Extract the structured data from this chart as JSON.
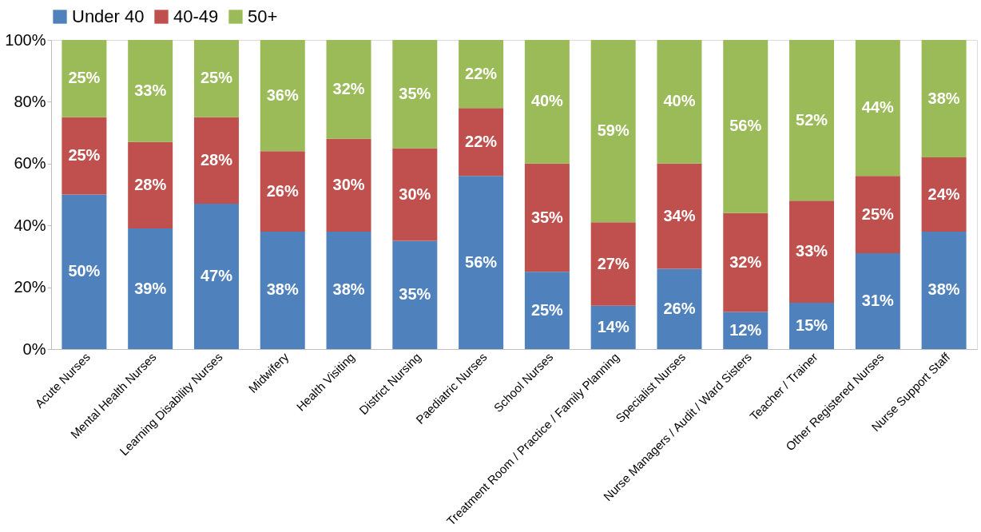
{
  "chart_data": {
    "type": "bar",
    "stacked": true,
    "legend": "top",
    "grid": false,
    "categories": [
      "Acute Nurses",
      "Mental Health Nurses",
      "Learning Disability Nurses",
      "Midwifery",
      "Health Visiting",
      "District Nursing",
      "Paediatric Nurses",
      "School Nurses",
      "Treatment Room / Practice / Family Planning",
      "Specialist Nurses",
      "Nurse Managers / Audit / Ward Sisters",
      "Teacher / Trainer",
      "Other Registered Nurses",
      "Nurse Support Staff"
    ],
    "ylim": [
      0,
      100
    ],
    "yticks": [
      {
        "value": 0,
        "label": "0%"
      },
      {
        "value": 20,
        "label": "20%"
      },
      {
        "value": 40,
        "label": "40%"
      },
      {
        "value": 60,
        "label": "60%"
      },
      {
        "value": 80,
        "label": "80%"
      },
      {
        "value": 100,
        "label": "100%"
      }
    ],
    "series": [
      {
        "name": "Under 40",
        "color": "#4f81bd",
        "values": [
          50,
          39,
          47,
          38,
          38,
          35,
          56,
          25,
          14,
          26,
          12,
          15,
          31,
          38
        ],
        "value_labels": [
          "50%",
          "39%",
          "47%",
          "38%",
          "38%",
          "35%",
          "56%",
          "25%",
          "14%",
          "26%",
          "12%",
          "15%",
          "31%",
          "38%"
        ]
      },
      {
        "name": "40-49",
        "color": "#c0504d",
        "values": [
          25,
          28,
          28,
          26,
          30,
          30,
          22,
          35,
          27,
          34,
          32,
          33,
          25,
          24
        ],
        "value_labels": [
          "25%",
          "28%",
          "28%",
          "26%",
          "30%",
          "30%",
          "22%",
          "35%",
          "27%",
          "34%",
          "32%",
          "33%",
          "25%",
          "24%"
        ]
      },
      {
        "name": "50+",
        "color": "#9bbb59",
        "values": [
          25,
          33,
          25,
          36,
          32,
          35,
          22,
          40,
          59,
          40,
          56,
          52,
          44,
          38
        ],
        "value_labels": [
          "25%",
          "33%",
          "25%",
          "36%",
          "32%",
          "35%",
          "22%",
          "40%",
          "59%",
          "40%",
          "56%",
          "52%",
          "44%",
          "38%"
        ]
      }
    ]
  }
}
